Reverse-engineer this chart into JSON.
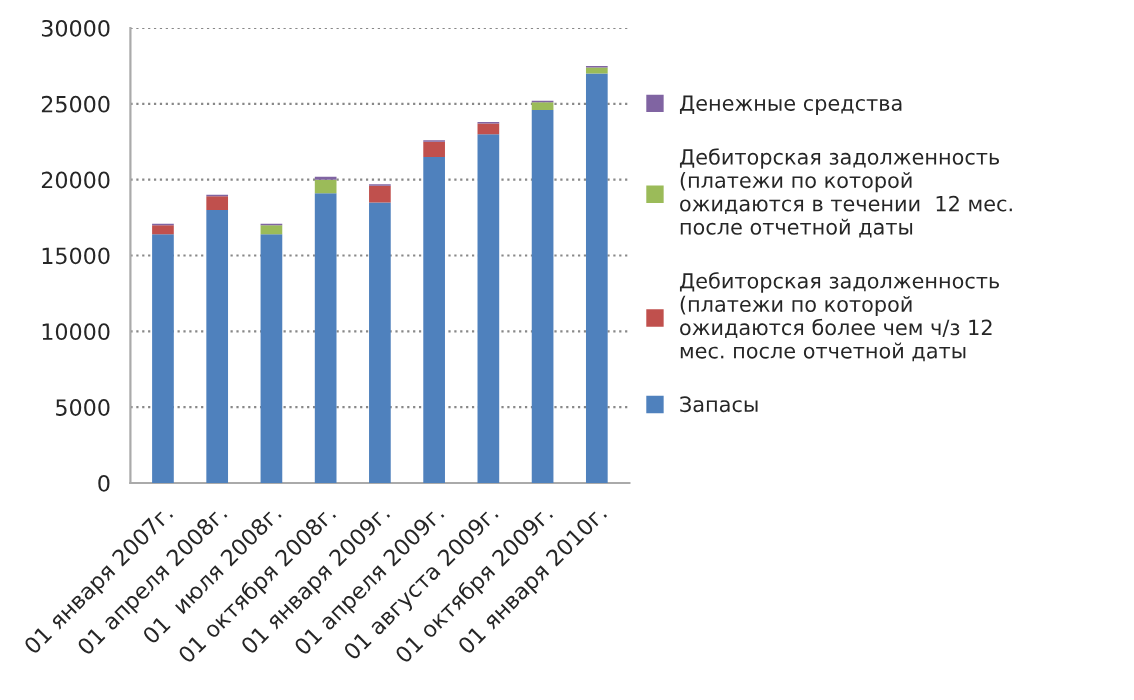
{
  "chart_data": {
    "type": "bar",
    "stacked": true,
    "categories": [
      "01 января 2007г.",
      "01 апреля 2008г.",
      "01  июля 2008г.",
      "01 октября 2008г.",
      "01 января 2009г.",
      "01 апреля 2009г.",
      "01 августа 2009г.",
      "01 октября 2009г.",
      "01 января 2010г."
    ],
    "series": [
      {
        "name": "Запасы",
        "color": "#4f81bd",
        "values": [
          16400,
          18000,
          16400,
          19100,
          18500,
          21500,
          23000,
          24600,
          27000
        ]
      },
      {
        "name": "Дебиторская задолженность\n(платежи по которой\nожидаются более чем ч/з 12\nмес. после отчетной даты",
        "color": "#c0504d",
        "values": [
          600,
          900,
          0,
          0,
          1100,
          1000,
          700,
          0,
          0
        ]
      },
      {
        "name": "Дебиторская задолженность\n(платежи по которой\nожидаются в течении  12 мес.\nпосле отчетной даты",
        "color": "#9bbb59",
        "values": [
          0,
          0,
          600,
          900,
          0,
          0,
          0,
          500,
          400
        ]
      },
      {
        "name": "Денежные средства",
        "color": "#8064a2",
        "values": [
          100,
          100,
          100,
          200,
          100,
          100,
          100,
          100,
          100
        ]
      }
    ],
    "ylim": [
      0,
      30000
    ],
    "yticks": [
      0,
      5000,
      10000,
      15000,
      20000,
      25000,
      30000
    ],
    "grid": "y",
    "legend": "right"
  }
}
